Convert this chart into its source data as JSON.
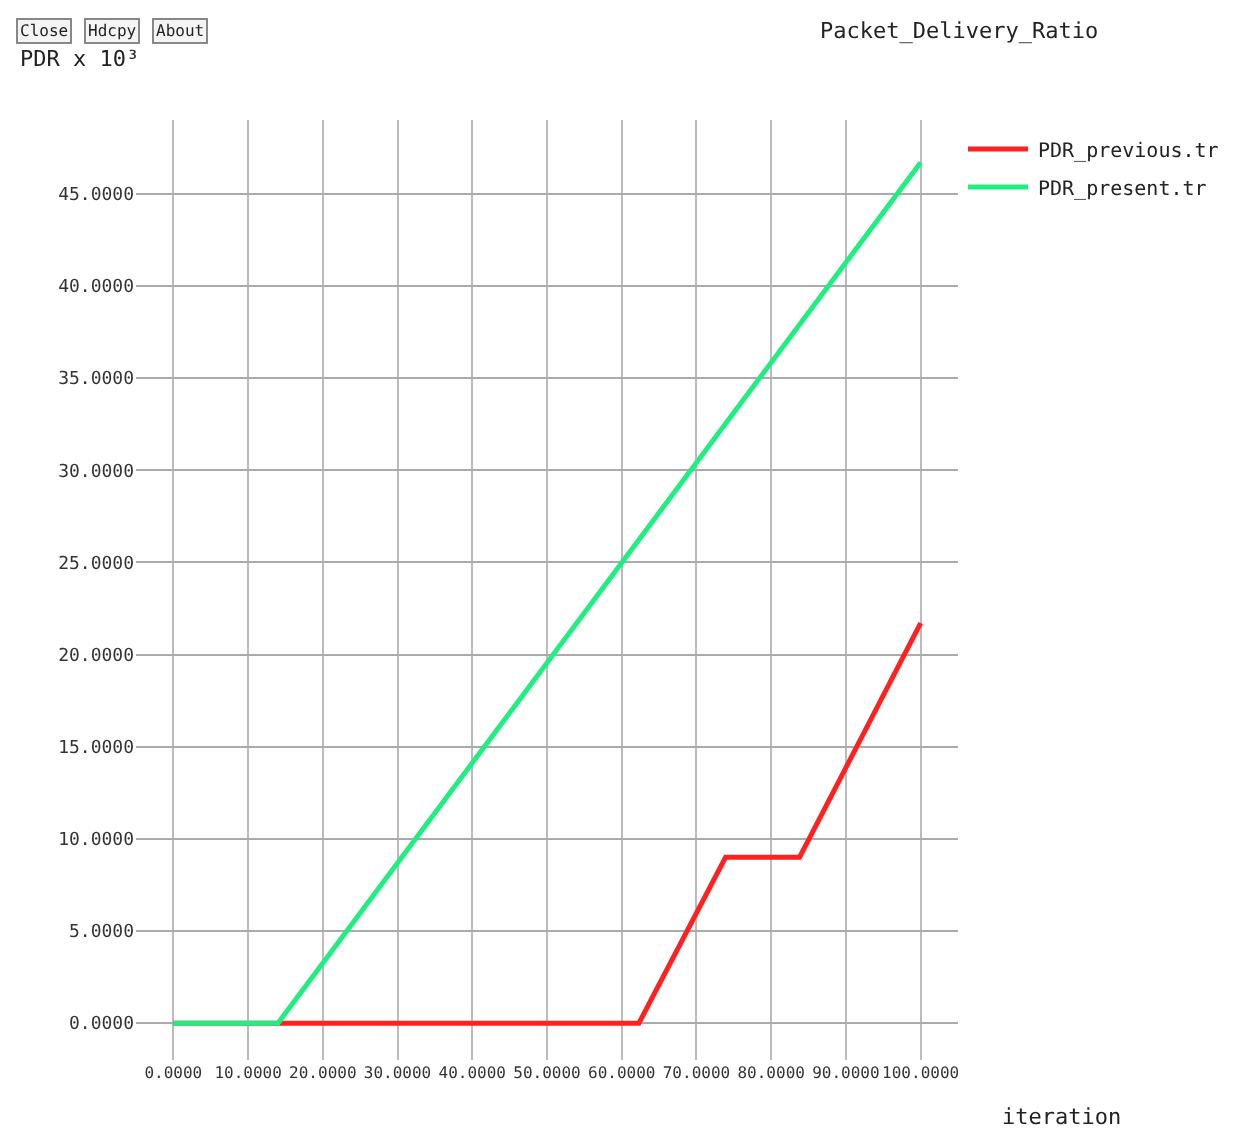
{
  "chart_data": {
    "type": "line",
    "title": "Packet_Delivery_Ratio",
    "xlabel": "iteration",
    "ylabel": "PDR x 10³",
    "annotations": [
      "Close",
      "Hdcpy",
      "About"
    ],
    "series": [
      {
        "name": "PDR_previous.tr",
        "color": "#ff2020",
        "x": [
          0,
          14,
          62.3,
          73.9,
          83.8,
          100
        ],
        "values": [
          0,
          0,
          0,
          9.0,
          9.0,
          21.7
        ]
      },
      {
        "name": "PDR_present.tr",
        "color": "#20ee80",
        "x": [
          0,
          14,
          100
        ],
        "values": [
          0,
          0,
          46.7
        ]
      }
    ],
    "xlim": [
      -5,
      105
    ],
    "ylim": [
      -2,
      49
    ],
    "xticks": [
      {
        "value": 0,
        "label": "0.0000"
      },
      {
        "value": 10,
        "label": "10.0000"
      },
      {
        "value": 20,
        "label": "20.0000"
      },
      {
        "value": 30,
        "label": "30.0000"
      },
      {
        "value": 40,
        "label": "40.0000"
      },
      {
        "value": 50,
        "label": "50.0000"
      },
      {
        "value": 60,
        "label": "60.0000"
      },
      {
        "value": 70,
        "label": "70.0000"
      },
      {
        "value": 80,
        "label": "80.0000"
      },
      {
        "value": 90,
        "label": "90.0000"
      },
      {
        "value": 100,
        "label": "100.0000"
      }
    ],
    "yticks": [
      {
        "value": 0,
        "label": "0.0000"
      },
      {
        "value": 5,
        "label": "5.0000"
      },
      {
        "value": 10,
        "label": "10.0000"
      },
      {
        "value": 15,
        "label": "15.0000"
      },
      {
        "value": 20,
        "label": "20.0000"
      },
      {
        "value": 25,
        "label": "25.0000"
      },
      {
        "value": 30,
        "label": "30.0000"
      },
      {
        "value": 35,
        "label": "35.0000"
      },
      {
        "value": 40,
        "label": "40.0000"
      },
      {
        "value": 45,
        "label": "45.0000"
      }
    ],
    "grid": true,
    "legend": "top right",
    "marker": "none",
    "line_style": "solid"
  }
}
